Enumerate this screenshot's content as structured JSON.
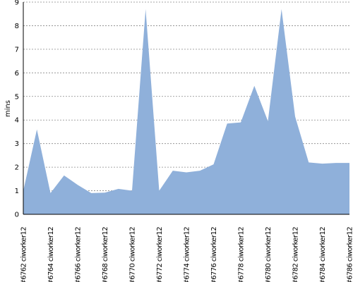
{
  "chart_data": {
    "type": "area",
    "y_label": "mins",
    "categories": [
      "#6762 ciworker12",
      null,
      "#6764 ciworker12",
      null,
      "#6766 ciworker12",
      null,
      "#6768 ciworker12",
      null,
      "#6770 ciworker12",
      null,
      "#6772 ciworker12",
      null,
      "#6774 ciworker12",
      null,
      "#6776 ciworker12",
      null,
      "#6778 ciworker12",
      null,
      "#6780 ciworker12",
      null,
      "#6782 ciworker12",
      null,
      "#6784 ciworker12",
      null,
      "#6786 ciworker12"
    ],
    "values": [
      1.0,
      3.6,
      0.9,
      1.65,
      1.25,
      0.9,
      0.92,
      1.08,
      1.0,
      8.7,
      1.0,
      1.85,
      1.78,
      1.85,
      2.12,
      3.85,
      3.9,
      5.45,
      3.95,
      8.7,
      4.15,
      2.2,
      2.15,
      2.18,
      2.18
    ],
    "color": "#8fb0da",
    "ylim": [
      0,
      9
    ],
    "yticks": [
      0,
      1,
      2,
      3,
      4,
      5,
      6,
      7,
      8,
      9
    ],
    "grid": true
  }
}
